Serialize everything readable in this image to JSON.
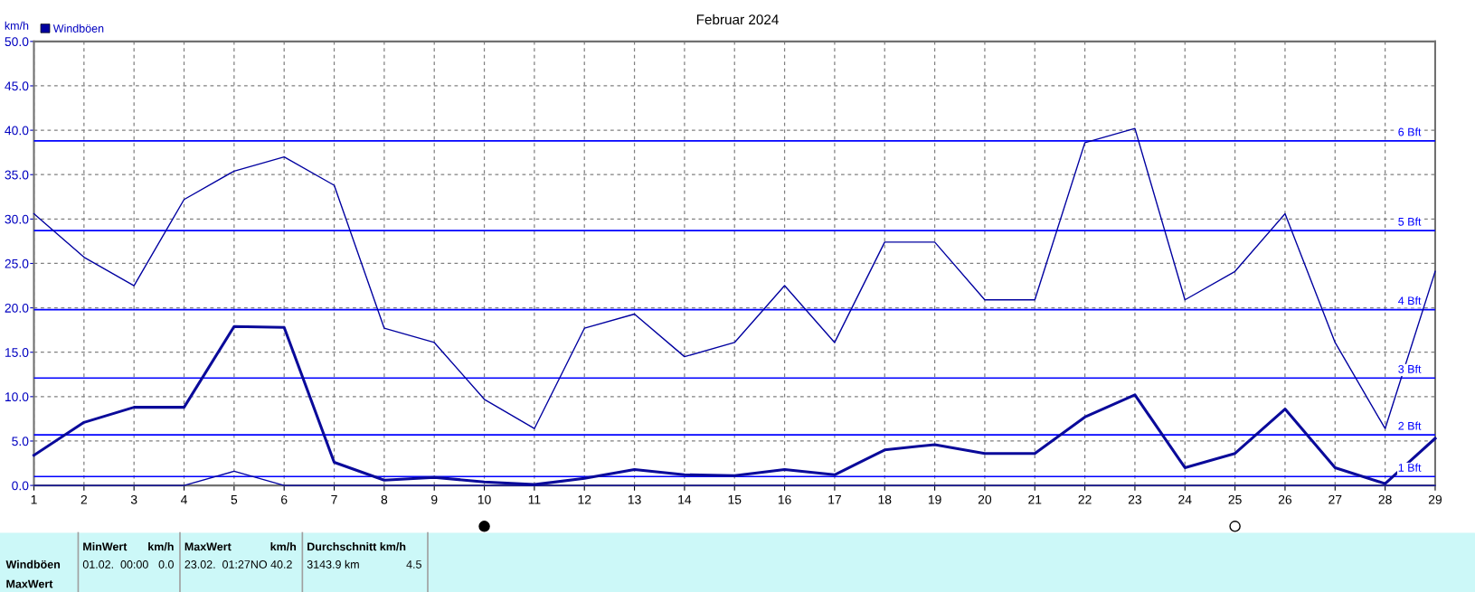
{
  "chart_data": {
    "type": "line",
    "title": "Februar 2024",
    "ylabel": "km/h",
    "x": [
      1,
      2,
      3,
      4,
      5,
      6,
      7,
      8,
      9,
      10,
      11,
      12,
      13,
      14,
      15,
      16,
      17,
      18,
      19,
      20,
      21,
      22,
      23,
      24,
      25,
      26,
      27,
      28,
      29
    ],
    "series": [
      {
        "name": "Windböen",
        "color": "#0000a0",
        "values": [
          30.6,
          25.7,
          22.5,
          32.2,
          35.4,
          37.0,
          33.8,
          17.7,
          16.1,
          9.7,
          6.4,
          17.7,
          19.3,
          14.5,
          16.1,
          22.5,
          16.1,
          27.4,
          27.4,
          20.9,
          20.9,
          38.6,
          40.2,
          20.9,
          24.1,
          30.6,
          16.1,
          6.4,
          24.1
        ]
      },
      {
        "color": "#0a0a9a",
        "values": [
          3.4,
          7.1,
          8.8,
          8.8,
          17.9,
          17.8,
          2.6,
          0.6,
          0.9,
          0.4,
          0.1,
          0.8,
          1.8,
          1.2,
          1.1,
          1.8,
          1.2,
          4.0,
          4.6,
          3.6,
          3.6,
          7.7,
          10.2,
          2.0,
          3.6,
          8.6,
          2.0,
          0.2,
          5.3
        ]
      },
      {
        "color": "#0000a0",
        "values": [
          0,
          0,
          0,
          0,
          1.6,
          0,
          0,
          0,
          0,
          0,
          0,
          0,
          0,
          0,
          0,
          0,
          0,
          0,
          0,
          0,
          0,
          0,
          0,
          0,
          0,
          0,
          0,
          0,
          0
        ]
      }
    ],
    "xlim": [
      1,
      29
    ],
    "xticks": [
      1,
      2,
      3,
      4,
      5,
      6,
      7,
      8,
      9,
      10,
      11,
      12,
      13,
      14,
      15,
      16,
      17,
      18,
      19,
      20,
      21,
      22,
      23,
      24,
      25,
      26,
      27,
      28,
      29
    ],
    "ylim": [
      0,
      50
    ],
    "yticks": [
      {
        "value": 0,
        "label": "0.0"
      },
      {
        "value": 5,
        "label": "5.0"
      },
      {
        "value": 10,
        "label": "10.0"
      },
      {
        "value": 15,
        "label": "15.0"
      },
      {
        "value": 20,
        "label": "20.0"
      },
      {
        "value": 25,
        "label": "25.0"
      },
      {
        "value": 30,
        "label": "30.0"
      },
      {
        "value": 35,
        "label": "35.0"
      },
      {
        "value": 40,
        "label": "40.0"
      },
      {
        "value": 45,
        "label": "45.0"
      },
      {
        "value": 50,
        "label": "50.0"
      }
    ],
    "ref_lines": [
      {
        "axis": "y",
        "value": 1.0,
        "label": "1 Bft",
        "color": "#0000ff"
      },
      {
        "axis": "y",
        "value": 5.7,
        "label": "2 Bft",
        "color": "#0000ff"
      },
      {
        "axis": "y",
        "value": 12.1,
        "label": "3 Bft",
        "color": "#0000ff"
      },
      {
        "axis": "y",
        "value": 19.8,
        "label": "4 Bft",
        "color": "#0000ff"
      },
      {
        "axis": "y",
        "value": 28.7,
        "label": "5 Bft",
        "color": "#0000ff"
      },
      {
        "axis": "y",
        "value": 38.8,
        "label": "6 Bft",
        "color": "#0000ff"
      }
    ],
    "grid": true,
    "legend": "top left",
    "marker": "none",
    "line_style": "solid",
    "annotations": [
      "Windböen",
      "MaxWert",
      "MinWert",
      "km/h",
      "01.02.  00:00",
      "0.0",
      "MaxWert",
      "km/h",
      "23.02.  01:27NO 40.2",
      "Durchschnitt km/h",
      "3143.9 km",
      "4.5"
    ]
  }
}
